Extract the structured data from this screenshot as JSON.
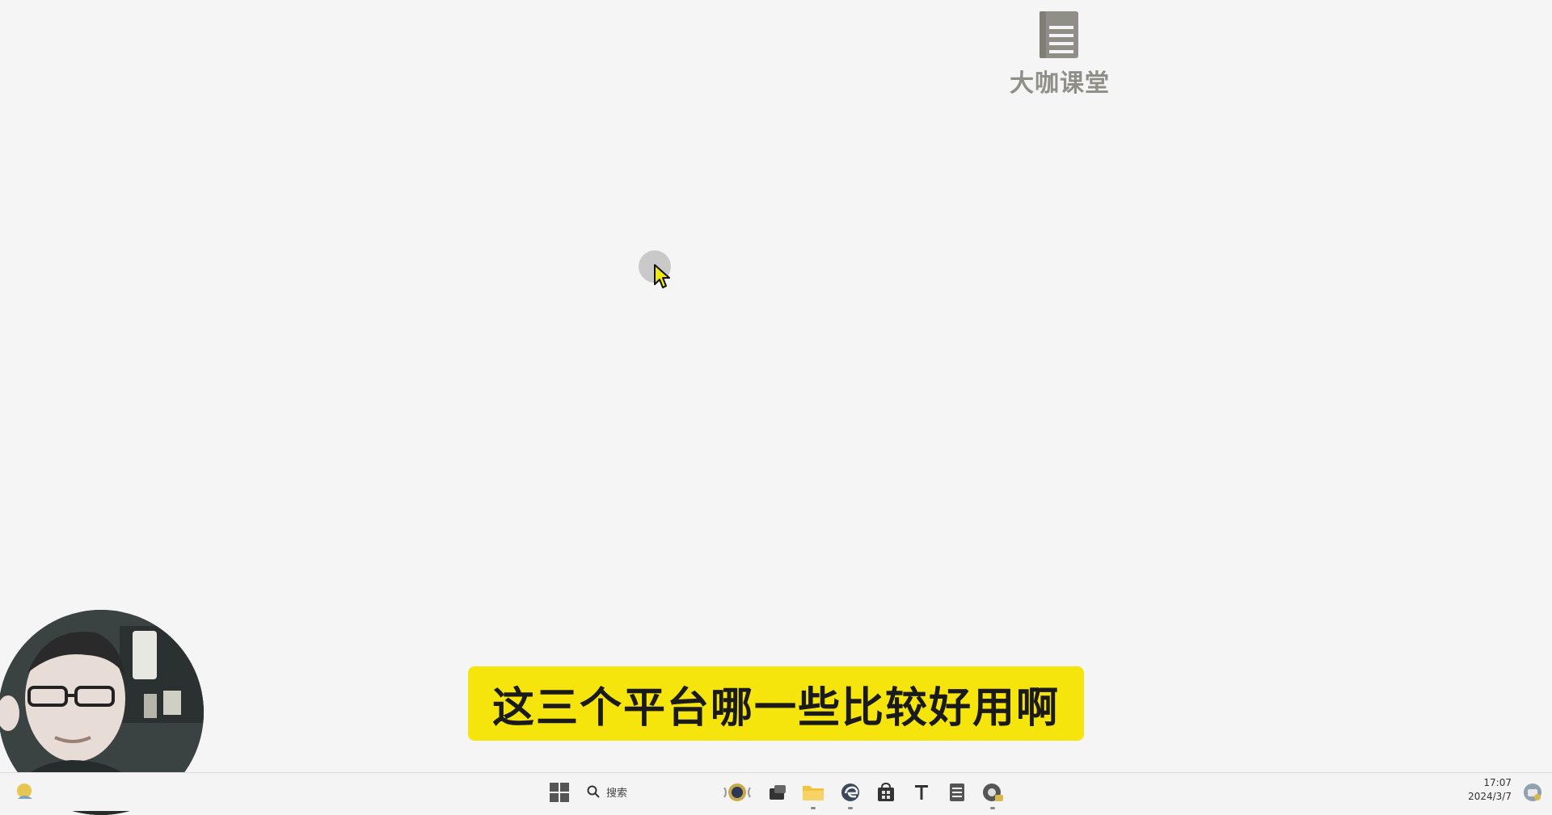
{
  "desktop": {
    "faded_title": "",
    "background": "#f5f5f5"
  },
  "logo": {
    "text": "大咖课堂",
    "icon": "book-icon",
    "color": "#8f8f88"
  },
  "cursor": {
    "icon": "mouse-pointer-icon",
    "arrow_color": "#f1e80f"
  },
  "subtitle": {
    "text": "这三个平台哪一些比较好用啊",
    "background": "#f5e50c"
  },
  "webcam": {
    "description": "presenter-webcam"
  },
  "taskbar": {
    "search_placeholder": "搜索",
    "time": "17:07",
    "date": "2024/3/7",
    "items": [
      {
        "name": "start-button",
        "icon": "windows-logo-icon"
      },
      {
        "name": "search-button",
        "icon": "search-icon"
      },
      {
        "name": "widgets-button",
        "icon": "award-badge-icon"
      },
      {
        "name": "task-view-button",
        "icon": "task-view-icon"
      },
      {
        "name": "file-explorer-button",
        "icon": "folder-icon"
      },
      {
        "name": "edge-button",
        "icon": "edge-browser-icon"
      },
      {
        "name": "store-button",
        "icon": "store-bag-icon"
      },
      {
        "name": "typora-button",
        "icon": "text-editor-icon"
      },
      {
        "name": "notepad-button",
        "icon": "notepad-icon"
      },
      {
        "name": "recorder-button",
        "icon": "recorder-icon"
      }
    ]
  }
}
